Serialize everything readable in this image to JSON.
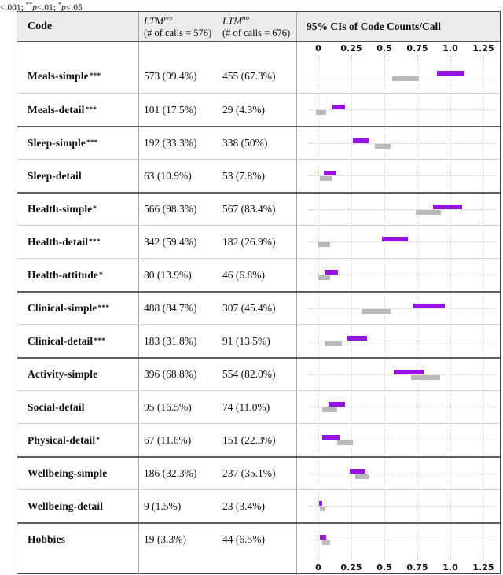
{
  "note": {
    "lead": "<.001; ",
    "stars2": "**",
    "p2": "p",
    "rest2": "<.01; ",
    "stars3": "*",
    "p3": "p",
    "rest3": "<.05"
  },
  "table": {
    "header": {
      "code": "Code",
      "ltm_yes": {
        "label": "LTM",
        "sup": "yes",
        "sub": "(# of calls = 576)"
      },
      "ltm_no": {
        "label": "LTM",
        "sup": "no",
        "sub": "(# of calls = 676)"
      },
      "ci_title": "95% CIs of Code Counts/Call"
    },
    "rows": [
      {
        "label": "Meals-simple",
        "sig": "***",
        "yes": "573 (99.4%)",
        "no": "455 (67.3%)",
        "group_start": false
      },
      {
        "label": "Meals-detail",
        "sig": "***",
        "yes": "101 (17.5%)",
        "no": "29 (4.3%)",
        "group_start": false
      },
      {
        "label": "Sleep-simple",
        "sig": "***",
        "yes": "192 (33.3%)",
        "no": "338 (50%)",
        "group_start": true
      },
      {
        "label": "Sleep-detail",
        "sig": "",
        "yes": "63 (10.9%)",
        "no": "53 (7.8%)",
        "group_start": false
      },
      {
        "label": "Health-simple",
        "sig": "*",
        "yes": "566 (98.3%)",
        "no": "567 (83.4%)",
        "group_start": true
      },
      {
        "label": "Health-detail",
        "sig": "***",
        "yes": "342 (59.4%)",
        "no": "182 (26.9%)",
        "group_start": false
      },
      {
        "label": "Health-attitude",
        "sig": "*",
        "yes": "80 (13.9%)",
        "no": "46 (6.8%)",
        "group_start": false
      },
      {
        "label": "Clinical-simple",
        "sig": "***",
        "yes": "488 (84.7%)",
        "no": "307 (45.4%)",
        "group_start": true
      },
      {
        "label": "Clinical-detail",
        "sig": "***",
        "yes": "183 (31.8%)",
        "no": "91 (13.5%)",
        "group_start": false
      },
      {
        "label": "Activity-simple",
        "sig": "",
        "yes": "396 (68.8%)",
        "no": "554 (82.0%)",
        "group_start": true
      },
      {
        "label": "Social-detail",
        "sig": "",
        "yes": "95 (16.5%)",
        "no": "74 (11.0%)",
        "group_start": false
      },
      {
        "label": "Physical-detail",
        "sig": "*",
        "yes": "67 (11.6%)",
        "no": "151 (22.3%)",
        "group_start": false
      },
      {
        "label": "Wellbeing-simple",
        "sig": "",
        "yes": "186 (32.3%)",
        "no": "237 (35.1%)",
        "group_start": true
      },
      {
        "label": "Wellbeing-detail",
        "sig": "",
        "yes": "9 (1.5%)",
        "no": "23 (3.4%)",
        "group_start": false
      },
      {
        "label": "Hobbies",
        "sig": "",
        "yes": "19 (3.3%)",
        "no": "44 (6.5%)",
        "group_start": true
      }
    ]
  },
  "chart_data": {
    "type": "bar",
    "orientation": "horizontal-interval",
    "title": "95% CIs of Code Counts/Call",
    "xlim": [
      0,
      1.25
    ],
    "tick_values": [
      0,
      0.25,
      0.5,
      0.75,
      1.0,
      1.25
    ],
    "tick_labels": [
      "0",
      "0.25",
      "0.5",
      "0.75",
      "1.0",
      "1.25"
    ],
    "grid": "dotted",
    "categories": [
      "Meals-simple",
      "Meals-detail",
      "Sleep-simple",
      "Sleep-detail",
      "Health-simple",
      "Health-detail",
      "Health-attitude",
      "Clinical-simple",
      "Clinical-detail",
      "Activity-simple",
      "Social-detail",
      "Physical-detail",
      "Wellbeing-simple",
      "Wellbeing-detail",
      "Hobbies"
    ],
    "series": [
      {
        "name": "LTM-yes 95% CI of code counts/call",
        "color": "#9513e4",
        "ci": [
          [
            0.9,
            1.11
          ],
          [
            0.11,
            0.2
          ],
          [
            0.26,
            0.38
          ],
          [
            0.04,
            0.13
          ],
          [
            0.87,
            1.09
          ],
          [
            0.48,
            0.68
          ],
          [
            0.05,
            0.15
          ],
          [
            0.72,
            0.96
          ],
          [
            0.22,
            0.37
          ],
          [
            0.57,
            0.8
          ],
          [
            0.08,
            0.2
          ],
          [
            0.03,
            0.16
          ],
          [
            0.24,
            0.36
          ],
          [
            0.005,
            0.03
          ],
          [
            0.01,
            0.06
          ]
        ]
      },
      {
        "name": "LTM-no 95% CI of code counts/call",
        "color": "#b9b9b9",
        "ci": [
          [
            0.56,
            0.76
          ],
          [
            -0.02,
            0.06
          ],
          [
            0.43,
            0.55
          ],
          [
            0.01,
            0.1
          ],
          [
            0.74,
            0.93
          ],
          [
            0.0,
            0.09
          ],
          [
            0.0,
            0.09
          ],
          [
            0.33,
            0.55
          ],
          [
            0.05,
            0.18
          ],
          [
            0.7,
            0.92
          ],
          [
            0.03,
            0.14
          ],
          [
            0.14,
            0.26
          ],
          [
            0.28,
            0.38
          ],
          [
            0.01,
            0.05
          ],
          [
            0.03,
            0.09
          ]
        ]
      }
    ]
  }
}
